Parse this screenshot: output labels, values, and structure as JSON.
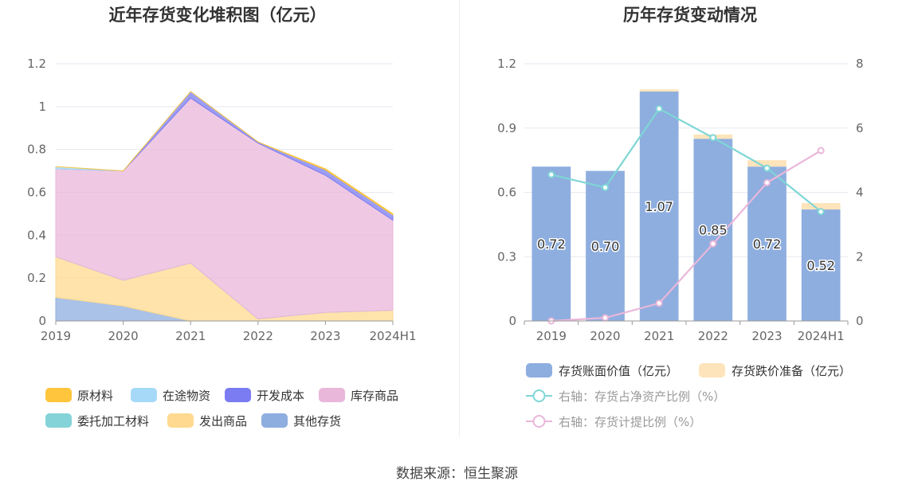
{
  "left_chart": {
    "title": "近年存货变化堆积图（亿元）",
    "legend": [
      {
        "label": "原材料",
        "color": "#ffc53d"
      },
      {
        "label": "在途物资",
        "color": "#a6d9f7"
      },
      {
        "label": "开发成本",
        "color": "#7b7cf2"
      },
      {
        "label": "库存商品",
        "color": "#e9b7da"
      },
      {
        "label": "委托加工材料",
        "color": "#84d3d8"
      },
      {
        "label": "发出商品",
        "color": "#ffd98f"
      },
      {
        "label": "其他存货",
        "color": "#8eaedf"
      }
    ]
  },
  "right_chart": {
    "title": "历年存货变动情况",
    "legend": [
      {
        "label": "存货账面价值（亿元）",
        "color": "#8eaedf",
        "kind": "bar"
      },
      {
        "label": "存货跌价准备（亿元）",
        "color": "#fde4bb",
        "kind": "bar"
      },
      {
        "label": "右轴：存货占净资产比例（%）",
        "color": "#7fd6d6",
        "kind": "line"
      },
      {
        "label": "右轴：存货计提比例（%）",
        "color": "#e9b7da",
        "kind": "line"
      }
    ]
  },
  "chart_data": [
    {
      "type": "area",
      "stacked": true,
      "title": "近年存货变化堆积图（亿元）",
      "categories": [
        "2019",
        "2020",
        "2021",
        "2022",
        "2023",
        "2024H1"
      ],
      "ylim": [
        0,
        1.2
      ],
      "yticks": [
        "0",
        "0.2",
        "0.4",
        "0.6",
        "0.8",
        "1",
        "1.2"
      ],
      "grid": true,
      "legend_position": "bottom",
      "series": [
        {
          "name": "其他存货",
          "color": "#8eaedf",
          "values": [
            0.11,
            0.07,
            0.0,
            0.0,
            0.0,
            0.0
          ]
        },
        {
          "name": "发出商品",
          "color": "#ffd98f",
          "values": [
            0.19,
            0.12,
            0.27,
            0.01,
            0.04,
            0.05
          ]
        },
        {
          "name": "委托加工材料",
          "color": "#84d3d8",
          "values": [
            0.0,
            0.0,
            0.0,
            0.0,
            0.0,
            0.0
          ]
        },
        {
          "name": "库存商品",
          "color": "#e9b7da",
          "values": [
            0.41,
            0.51,
            0.77,
            0.82,
            0.64,
            0.42
          ]
        },
        {
          "name": "开发成本",
          "color": "#7b7cf2",
          "values": [
            0.0,
            0.0,
            0.03,
            0.005,
            0.025,
            0.025
          ]
        },
        {
          "name": "在途物资",
          "color": "#a6d9f7",
          "values": [
            0.01,
            0.0,
            0.0,
            0.0,
            0.0,
            0.0
          ]
        },
        {
          "name": "原材料",
          "color": "#ffc53d",
          "values": [
            0.0,
            0.0,
            0.0,
            0.0,
            0.005,
            0.005
          ]
        }
      ]
    },
    {
      "type": "bar",
      "stacked": true,
      "title": "历年存货变动情况",
      "categories": [
        "2019",
        "2020",
        "2021",
        "2022",
        "2023",
        "2024H1"
      ],
      "ylim": [
        0,
        1.2
      ],
      "yticks": [
        "0",
        "0.3",
        "0.6",
        "0.9",
        "1.2"
      ],
      "y2lim": [
        0,
        8
      ],
      "y2ticks": [
        "0",
        "2",
        "4",
        "6",
        "8"
      ],
      "grid": true,
      "legend_position": "bottom",
      "series": [
        {
          "name": "存货账面价值（亿元）",
          "color": "#8eaedf",
          "axis": "left",
          "kind": "bar",
          "values": [
            0.72,
            0.7,
            1.07,
            0.85,
            0.72,
            0.52
          ],
          "labels": [
            "0.72",
            "0.70",
            "1.07",
            "0.85",
            "0.72",
            "0.52"
          ]
        },
        {
          "name": "存货跌价准备（亿元）",
          "color": "#fde4bb",
          "axis": "left",
          "kind": "bar",
          "values": [
            0.0,
            0.0,
            0.01,
            0.02,
            0.03,
            0.03
          ]
        },
        {
          "name": "右轴：存货占净资产比例（%）",
          "color": "#7fd6d6",
          "axis": "right",
          "kind": "line",
          "values": [
            4.55,
            4.15,
            6.6,
            5.7,
            4.75,
            3.4
          ]
        },
        {
          "name": "右轴：存货计提比例（%）",
          "color": "#e9b7da",
          "axis": "right",
          "kind": "line",
          "values": [
            0.0,
            0.1,
            0.55,
            2.4,
            4.3,
            5.3
          ]
        }
      ]
    }
  ],
  "footer": {
    "source": "数据来源：恒生聚源"
  }
}
